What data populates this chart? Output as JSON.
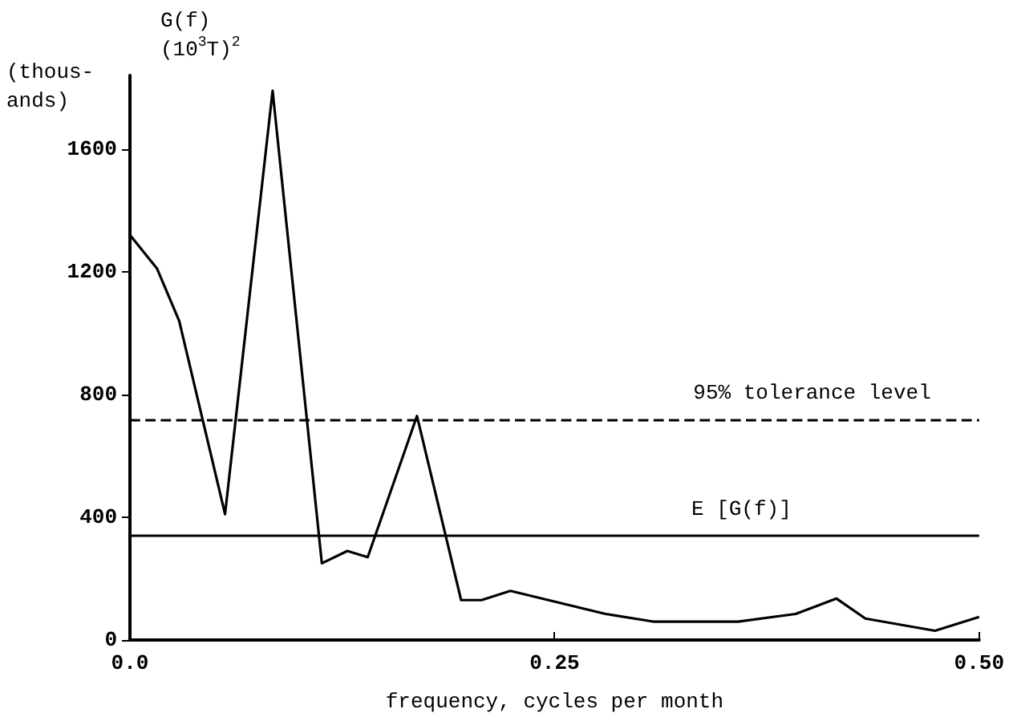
{
  "chart_data": {
    "type": "line",
    "ylabel": "G(f)\n(10$^{3}$T)$^{2}$",
    "xlabel": "frequency, cycles per month",
    "annotations": [
      "(thous-\nands)"
    ],
    "x": [
      0,
      0.016,
      0.029,
      0.056,
      0.084,
      0.113,
      0.128,
      0.14,
      0.169,
      0.195,
      0.207,
      0.224,
      0.28,
      0.308,
      0.358,
      0.392,
      0.416,
      0.433,
      0.474,
      0.5
    ],
    "series": [
      {
        "color": "#000000",
        "values": [
          1320,
          1210,
          1040,
          410,
          1790,
          250,
          290,
          270,
          730,
          130,
          130,
          160,
          85,
          60,
          60,
          85,
          135,
          70,
          30,
          75
        ]
      }
    ],
    "xlim": [
      0,
      0.5
    ],
    "xticks": [
      {
        "value": 0,
        "label": "0.0"
      },
      0.25,
      {
        "value": 0.5,
        "label": "0.50"
      }
    ],
    "ylim": [
      0,
      1840
    ],
    "yticks": [
      0,
      400,
      800,
      1200,
      1600
    ],
    "ref_lines": [
      {
        "axis": "y",
        "value": 720,
        "label": "95% tolerance level",
        "line_style": "dashed",
        "color": "#000000"
      },
      {
        "axis": "y",
        "value": 340,
        "label": "E [G(f)]",
        "line_style": "solid",
        "color": "#000000"
      }
    ],
    "marker": "none",
    "line_style": "solid"
  }
}
